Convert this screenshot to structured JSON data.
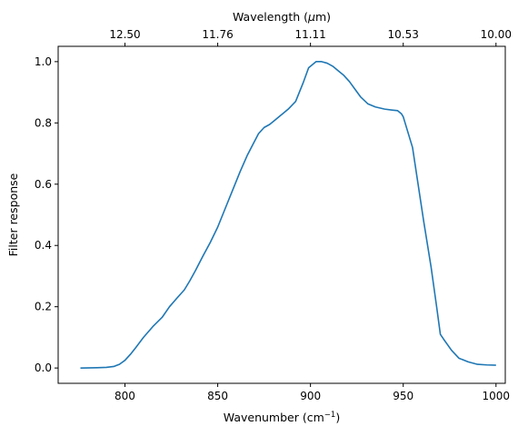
{
  "chart_data": {
    "type": "line",
    "title": "",
    "xlabel": "Wavenumber (cm",
    "xlabel_sup": "−1",
    "xlabel_end": ")",
    "ylabel": "Filter response",
    "top_xlabel": "Wavelength (",
    "top_xlabel_mu": "μ",
    "top_xlabel_end": "m)",
    "xlim": [
      764,
      1005
    ],
    "ylim": [
      -0.05,
      1.05
    ],
    "grid": false,
    "legend": "none",
    "line_color": "#1f77b4",
    "x_ticks": [
      {
        "value": 800,
        "label": "800"
      },
      {
        "value": 850,
        "label": "850"
      },
      {
        "value": 900,
        "label": "900"
      },
      {
        "value": 950,
        "label": "950"
      },
      {
        "value": 1000,
        "label": "1000"
      }
    ],
    "y_ticks": [
      {
        "value": 0.0,
        "label": "0.0"
      },
      {
        "value": 0.2,
        "label": "0.2"
      },
      {
        "value": 0.4,
        "label": "0.4"
      },
      {
        "value": 0.6,
        "label": "0.6"
      },
      {
        "value": 0.8,
        "label": "0.8"
      },
      {
        "value": 1.0,
        "label": "1.0"
      }
    ],
    "top_ticks": [
      {
        "value": 800,
        "label": "12.50"
      },
      {
        "value": 850,
        "label": "11.76"
      },
      {
        "value": 900,
        "label": "11.11"
      },
      {
        "value": 950,
        "label": "10.53"
      },
      {
        "value": 1000,
        "label": "10.00"
      }
    ],
    "series": [
      {
        "x": [
          776,
          785,
          790,
          794,
          797,
          800,
          803,
          806,
          810,
          815,
          820,
          824,
          828,
          832,
          835,
          838,
          842,
          846,
          850,
          854,
          858,
          862,
          866,
          869,
          872,
          875,
          878,
          881,
          885,
          888,
          892,
          896,
          899,
          903,
          906,
          909,
          912,
          915,
          918,
          921,
          924,
          927,
          931,
          935,
          940,
          944,
          947,
          949,
          950,
          952,
          955,
          958,
          961,
          965,
          968,
          970,
          972,
          974,
          976,
          978,
          980,
          985,
          990,
          995,
          1000
        ],
        "y": [
          0.0,
          0.001,
          0.002,
          0.005,
          0.012,
          0.025,
          0.045,
          0.068,
          0.1,
          0.135,
          0.165,
          0.2,
          0.228,
          0.255,
          0.285,
          0.318,
          0.365,
          0.41,
          0.46,
          0.52,
          0.58,
          0.64,
          0.695,
          0.73,
          0.765,
          0.785,
          0.795,
          0.81,
          0.83,
          0.845,
          0.87,
          0.93,
          0.98,
          1.0,
          1.0,
          0.995,
          0.985,
          0.97,
          0.955,
          0.935,
          0.91,
          0.885,
          0.862,
          0.852,
          0.845,
          0.842,
          0.84,
          0.83,
          0.82,
          0.78,
          0.72,
          0.6,
          0.48,
          0.33,
          0.2,
          0.11,
          0.092,
          0.075,
          0.058,
          0.045,
          0.032,
          0.02,
          0.012,
          0.01,
          0.009
        ]
      }
    ]
  }
}
